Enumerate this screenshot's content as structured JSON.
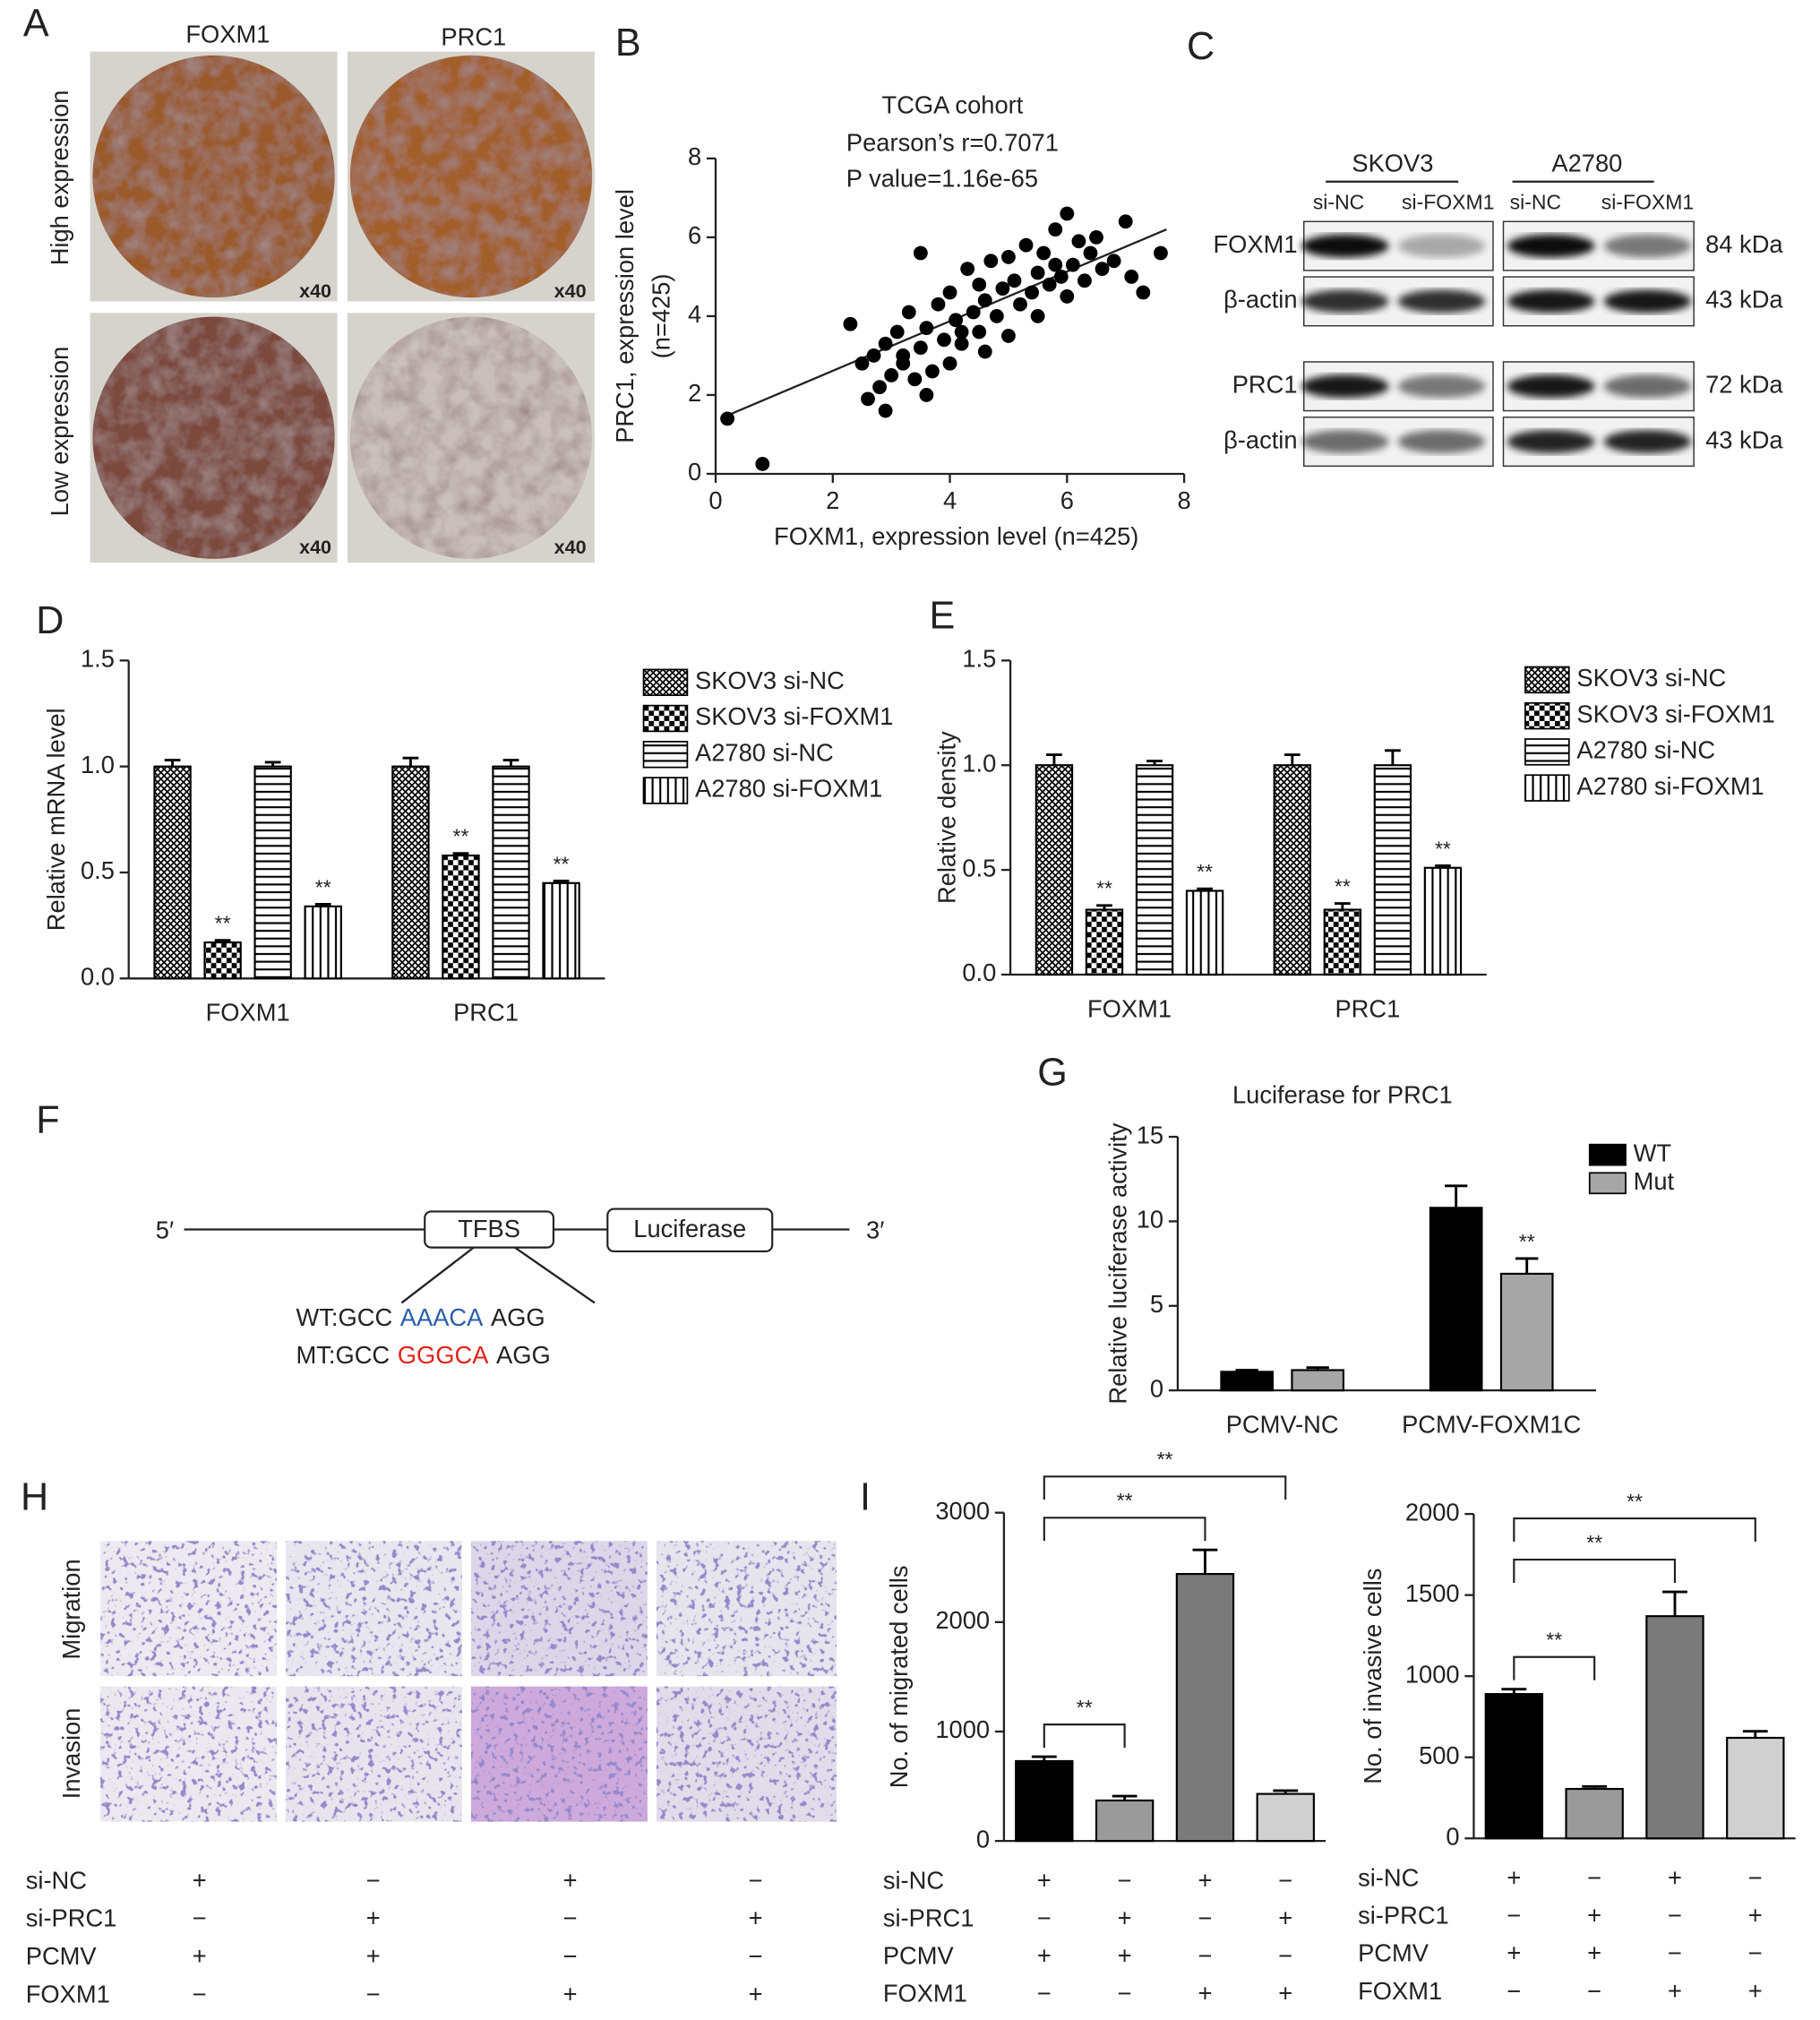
{
  "panels": [
    "A",
    "B",
    "C",
    "D",
    "E",
    "F",
    "G",
    "H",
    "I"
  ],
  "panel_a": {
    "columns": [
      "FOXM1",
      "PRC1"
    ],
    "rows": [
      "High expression",
      "Low expression"
    ],
    "magnification": [
      "x40",
      "x40",
      "x40",
      "x40"
    ]
  },
  "panel_c": {
    "cell_lines": [
      "SKOV3",
      "A2780"
    ],
    "lanes": [
      "si-NC",
      "si-FOXM1",
      "si-NC",
      "si-FOXM1"
    ],
    "proteins": [
      "FOXM1",
      "β-actin",
      "PRC1",
      "β-actin"
    ],
    "sizes": [
      "84 kDa",
      "43 kDa",
      "72 kDa",
      "43 kDa"
    ]
  },
  "panel_f": {
    "five_prime": "5′",
    "three_prime": "3′",
    "tfbs": "TFBS",
    "reporter": "Luciferase",
    "wt": [
      "WT:GCC",
      "AAACA",
      "AGG"
    ],
    "mt": [
      "MT:GCC",
      "GGGCA",
      "AGG"
    ]
  },
  "panel_h": {
    "rows": [
      "Migration",
      "Invasion"
    ],
    "conditions": {
      "labels": [
        "si-NC",
        "si-PRC1",
        "PCMV",
        "FOXM1"
      ],
      "signs": [
        [
          "+",
          "−",
          "+",
          "−"
        ],
        [
          "−",
          "+",
          "−",
          "+"
        ],
        [
          "+",
          "+",
          "−",
          "−"
        ],
        [
          "−",
          "−",
          "+",
          "+"
        ]
      ]
    }
  },
  "chart_data": [
    {
      "type": "scatter",
      "title": "TCGA cohort",
      "annotations": [
        "Pearson’s r=0.7071",
        "P value=1.16e-65"
      ],
      "xlabel": "FOXM1, expression level (n=425)",
      "ylabel": [
        "PRC1, expression level",
        "(n=425)"
      ],
      "x": [
        0.2,
        0.8,
        2.3,
        2.5,
        2.6,
        2.7,
        2.8,
        2.9,
        3.0,
        3.1,
        3.2,
        3.3,
        3.4,
        3.5,
        3.5,
        3.6,
        3.7,
        3.8,
        3.9,
        4.0,
        4.0,
        4.1,
        4.2,
        4.3,
        4.4,
        4.5,
        4.5,
        4.6,
        4.7,
        4.8,
        4.9,
        5.0,
        5.0,
        5.1,
        5.2,
        5.3,
        5.4,
        5.5,
        5.5,
        5.6,
        5.7,
        5.8,
        5.9,
        6.0,
        6.0,
        6.1,
        6.2,
        6.3,
        6.4,
        6.5,
        6.6,
        6.8,
        7.0,
        7.1,
        7.3,
        7.6,
        3.2,
        4.2,
        5.8,
        2.9,
        3.6,
        4.6
      ],
      "y": [
        1.4,
        0.25,
        3.8,
        2.8,
        1.9,
        3.0,
        2.2,
        3.3,
        2.5,
        3.6,
        2.8,
        4.1,
        2.4,
        5.6,
        3.2,
        3.7,
        2.6,
        4.3,
        3.4,
        2.8,
        4.6,
        3.9,
        3.3,
        5.2,
        4.1,
        4.8,
        3.6,
        4.4,
        5.4,
        4.0,
        4.7,
        3.5,
        5.5,
        4.9,
        4.3,
        5.8,
        4.6,
        5.1,
        4.0,
        5.6,
        4.8,
        6.2,
        5.0,
        6.6,
        4.5,
        5.3,
        5.9,
        4.9,
        5.6,
        6.0,
        5.2,
        5.4,
        6.4,
        5.0,
        4.6,
        5.6,
        3.0,
        3.6,
        5.3,
        1.6,
        2.0,
        3.1
      ],
      "color": "#000000",
      "trendline": {
        "x": [
          0.15,
          7.7
        ],
        "y": [
          1.45,
          6.2
        ]
      },
      "xlim": [
        0,
        8
      ],
      "ylim": [
        0,
        8
      ],
      "xticks": [
        0,
        2,
        4,
        6,
        8
      ],
      "yticks": [
        0,
        2,
        4,
        6,
        8
      ]
    },
    {
      "type": "bar",
      "ylabel": "Relative mRNA level",
      "categories": [
        "FOXM1",
        "PRC1"
      ],
      "legend": "right",
      "series": [
        {
          "name": "SKOV3 si-NC",
          "pattern": "crosshatch",
          "values": [
            1.0,
            1.0
          ],
          "errors": [
            0.03,
            0.04
          ]
        },
        {
          "name": "SKOV3 si-FOXM1",
          "pattern": "checker",
          "values": [
            0.17,
            0.58
          ],
          "errors": [
            0.01,
            0.01
          ],
          "significance": [
            "**",
            "**"
          ]
        },
        {
          "name": "A2780 si-NC",
          "pattern": "horizontal",
          "values": [
            1.0,
            1.0
          ],
          "errors": [
            0.02,
            0.03
          ]
        },
        {
          "name": "A2780 si-FOXM1",
          "pattern": "vertical",
          "values": [
            0.34,
            0.45
          ],
          "errors": [
            0.01,
            0.01
          ],
          "significance": [
            "**",
            "**"
          ]
        }
      ],
      "ylim": [
        0,
        1.5
      ],
      "yticks": [
        {
          "value": 0,
          "label": "0.0"
        },
        {
          "value": 0.5,
          "label": "0.5"
        },
        {
          "value": 1,
          "label": "1.0"
        },
        {
          "value": 1.5,
          "label": "1.5"
        }
      ]
    },
    {
      "type": "bar",
      "ylabel": "Relative density",
      "categories": [
        "FOXM1",
        "PRC1"
      ],
      "legend": "right",
      "series": [
        {
          "name": "SKOV3 si-NC",
          "pattern": "crosshatch",
          "values": [
            1.0,
            1.0
          ],
          "errors": [
            0.05,
            0.05
          ]
        },
        {
          "name": "SKOV3 si-FOXM1",
          "pattern": "checker",
          "values": [
            0.31,
            0.31
          ],
          "errors": [
            0.02,
            0.03
          ],
          "significance": [
            "**",
            "**"
          ]
        },
        {
          "name": "A2780 si-NC",
          "pattern": "horizontal",
          "values": [
            1.0,
            1.0
          ],
          "errors": [
            0.02,
            0.07
          ]
        },
        {
          "name": "A2780 si-FOXM1",
          "pattern": "vertical",
          "values": [
            0.4,
            0.51
          ],
          "errors": [
            0.01,
            0.01
          ],
          "significance": [
            "**",
            "**"
          ]
        }
      ],
      "ylim": [
        0,
        1.5
      ],
      "yticks": [
        {
          "value": 0,
          "label": "0.0"
        },
        {
          "value": 0.5,
          "label": "0.5"
        },
        {
          "value": 1,
          "label": "1.0"
        },
        {
          "value": 1.5,
          "label": "1.5"
        }
      ]
    },
    {
      "type": "bar",
      "title": "Luciferase for PRC1",
      "ylabel": "Relative luciferase activity",
      "categories": [
        "PCMV-NC",
        "PCMV-FOXM1C"
      ],
      "legend": "right",
      "series": [
        {
          "name": "WT",
          "color": "#000000",
          "values": [
            1.1,
            10.8
          ],
          "errors": [
            0.1,
            1.3
          ]
        },
        {
          "name": "Mut",
          "color": "#a6a6a6",
          "values": [
            1.2,
            6.9
          ],
          "errors": [
            0.15,
            0.9
          ],
          "significance": [
            null,
            "**"
          ]
        }
      ],
      "ylim": [
        0,
        15
      ],
      "yticks": [
        0,
        5,
        10,
        15
      ]
    },
    {
      "type": "bar",
      "ylabel": "No. of migrated cells",
      "values": [
        730,
        370,
        2440,
        430
      ],
      "errors": [
        40,
        40,
        220,
        30
      ],
      "colors": [
        "#000000",
        "#9a9a9a",
        "#7a7a7a",
        "#d0d0d0"
      ],
      "comparisons": [
        {
          "label": "**"
        },
        {
          "label": "**"
        },
        {
          "label": "**"
        }
      ],
      "conditions": {
        "labels": [
          "si-NC",
          "si-PRC1",
          "PCMV",
          "FOXM1"
        ],
        "signs": [
          [
            "+",
            "−",
            "+",
            "−"
          ],
          [
            "−",
            "+",
            "−",
            "+"
          ],
          [
            "+",
            "+",
            "−",
            "−"
          ],
          [
            "−",
            "−",
            "+",
            "+"
          ]
        ]
      },
      "ylim": [
        0,
        3000
      ],
      "yticks": [
        0,
        1000,
        2000,
        3000
      ]
    },
    {
      "type": "bar",
      "ylabel": "No. of invasive cells",
      "values": [
        890,
        305,
        1370,
        620
      ],
      "errors": [
        30,
        15,
        150,
        40
      ],
      "colors": [
        "#000000",
        "#9a9a9a",
        "#7a7a7a",
        "#d0d0d0"
      ],
      "comparisons": [
        {
          "label": "**"
        },
        {
          "label": "**"
        },
        {
          "label": "**"
        }
      ],
      "conditions": {
        "labels": [
          "si-NC",
          "si-PRC1",
          "PCMV",
          "FOXM1"
        ],
        "signs": [
          [
            "+",
            "−",
            "+",
            "−"
          ],
          [
            "−",
            "+",
            "−",
            "+"
          ],
          [
            "+",
            "+",
            "−",
            "−"
          ],
          [
            "−",
            "−",
            "+",
            "+"
          ]
        ]
      },
      "ylim": [
        0,
        2000
      ],
      "yticks": [
        0,
        500,
        1000,
        1500,
        2000
      ]
    }
  ]
}
